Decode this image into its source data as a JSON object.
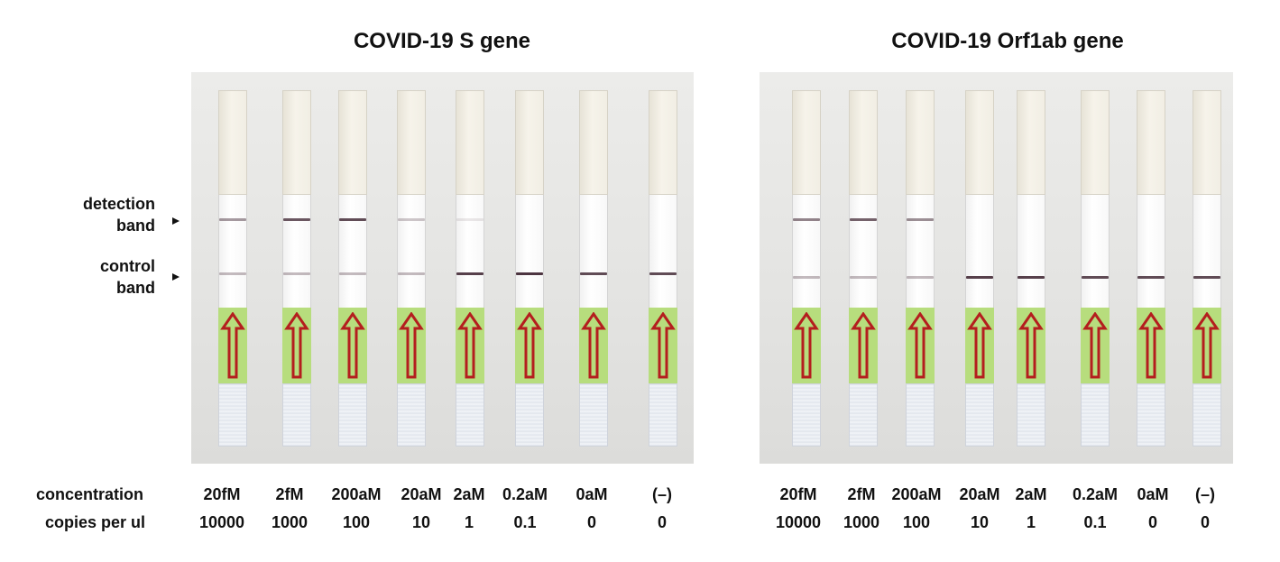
{
  "panels": [
    {
      "title": "COVID-19 S gene",
      "strips": [
        {
          "concentration": "20fM",
          "copies": "10000",
          "detection_band": 0.45,
          "control_band": 0.3
        },
        {
          "concentration": "2fM",
          "copies": "1000",
          "detection_band": 0.75,
          "control_band": 0.3
        },
        {
          "concentration": "200aM",
          "copies": "100",
          "detection_band": 0.8,
          "control_band": 0.3
        },
        {
          "concentration": "20aM",
          "copies": "10",
          "detection_band": 0.25,
          "control_band": 0.3
        },
        {
          "concentration": "2aM",
          "copies": "1",
          "detection_band": 0.1,
          "control_band": 0.85
        },
        {
          "concentration": "0.2aM",
          "copies": "0.1",
          "detection_band": 0.0,
          "control_band": 0.9
        },
        {
          "concentration": "0aM",
          "copies": "0",
          "detection_band": 0.0,
          "control_band": 0.8
        },
        {
          "concentration": "(–)",
          "copies": "0",
          "detection_band": 0.0,
          "control_band": 0.8
        }
      ]
    },
    {
      "title": "COVID-19 Orf1ab gene",
      "strips": [
        {
          "concentration": "20fM",
          "copies": "10000",
          "detection_band": 0.55,
          "control_band": 0.3
        },
        {
          "concentration": "2fM",
          "copies": "1000",
          "detection_band": 0.7,
          "control_band": 0.3
        },
        {
          "concentration": "200aM",
          "copies": "100",
          "detection_band": 0.5,
          "control_band": 0.3
        },
        {
          "concentration": "20aM",
          "copies": "10",
          "detection_band": 0.0,
          "control_band": 0.85
        },
        {
          "concentration": "2aM",
          "copies": "1",
          "detection_band": 0.0,
          "control_band": 0.85
        },
        {
          "concentration": "0.2aM",
          "copies": "0.1",
          "detection_band": 0.0,
          "control_band": 0.8
        },
        {
          "concentration": "0aM",
          "copies": "0",
          "detection_band": 0.0,
          "control_band": 0.8
        },
        {
          "concentration": "(–)",
          "copies": "0",
          "detection_band": 0.0,
          "control_band": 0.8
        }
      ]
    }
  ],
  "labels": {
    "detection": "detection\nband",
    "control": "control\nband",
    "concentration_row": "concentration",
    "copies_row": "copies per ul"
  },
  "colors": {
    "band": "#3a1f2c",
    "arrow": "#b41e1e",
    "green_zone": "#b7dd7d"
  }
}
